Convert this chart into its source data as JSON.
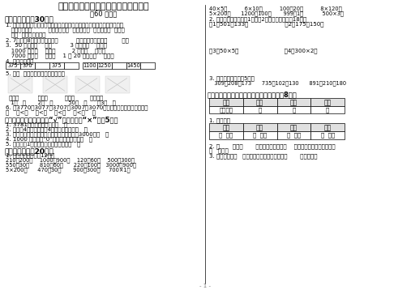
{
  "title": "青岛版五四制二年级数学下册期末试卷",
  "subtitle": "（60 分钟）",
  "bg_color": "#ffffff",
  "sec1_title": "一、填一填。（30分）",
  "sec2_title": "二、判一判。（正确的打“√”，错误的打“×”）（5分）",
  "sec3_title": "三、算一算。（20分）",
  "sec4_title": "四、下面是选举合唱队队长的得票统计。（8分）",
  "table2_headers": [
    "王刚",
    "李强",
    "刘勇",
    "宋磊"
  ],
  "table2_data": [
    "正正正一",
    "正",
    "丁",
    "正"
  ],
  "table3_headers": [
    "王刚",
    "李强",
    "刘勇",
    "宋磊"
  ],
  "table3_data": [
    "（  ）票",
    "（  ）票",
    "（  ）票",
    "（  ）票"
  ]
}
